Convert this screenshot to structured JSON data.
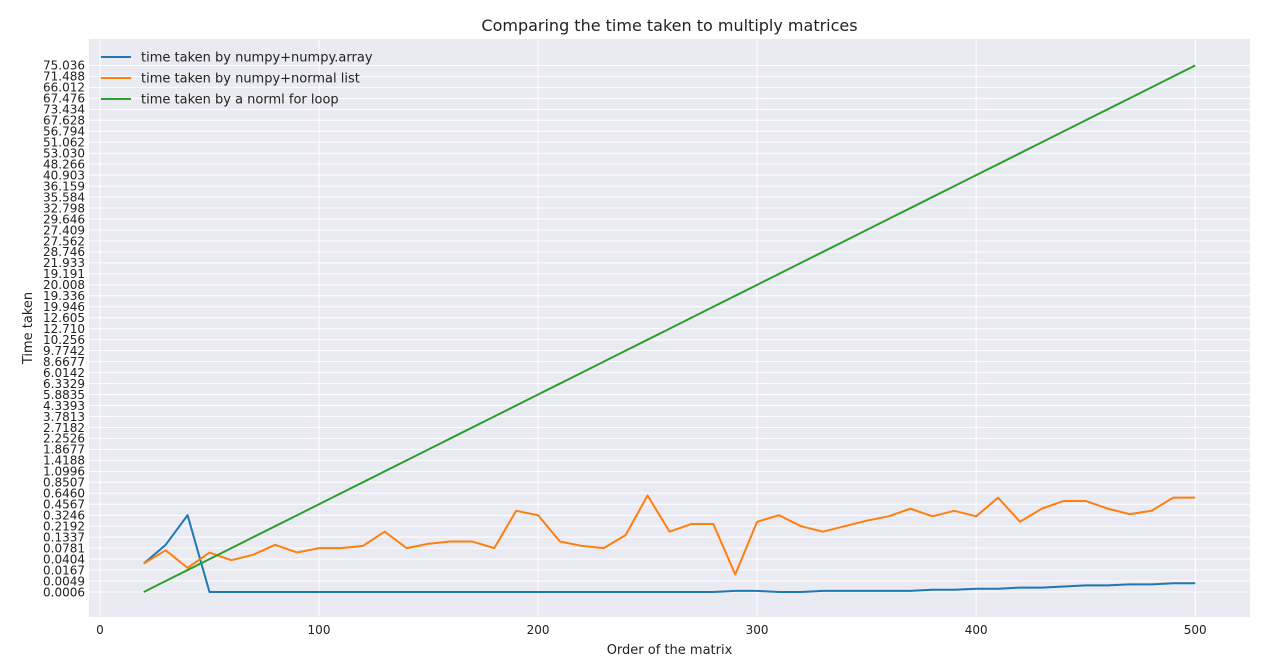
{
  "chart_data": {
    "type": "line",
    "title": "Comparing the time taken to multiply matrices",
    "xlabel": "Order of the matrix",
    "ylabel": "Time taken",
    "xlim": [
      -5,
      525
    ],
    "x_ticks": [
      0,
      100,
      200,
      300,
      400,
      500
    ],
    "y_axis_kind": "categorical",
    "y_categories": [
      "0.0006",
      "0.0049",
      "0.0167",
      "0.0404",
      "0.0781",
      "0.1337",
      "0.2192",
      "0.3246",
      "0.4567",
      "0.6460",
      "0.8507",
      "1.0996",
      "1.4188",
      "1.8677",
      "2.2526",
      "2.7182",
      "3.7813",
      "4.3393",
      "5.8835",
      "6.3329",
      "6.0142",
      "8.6677",
      "9.7742",
      "10.256",
      "12.710",
      "12.605",
      "19.946",
      "19.336",
      "20.008",
      "19.191",
      "21.933",
      "28.746",
      "27.562",
      "27.409",
      "29.646",
      "32.798",
      "35.584",
      "36.159",
      "40.903",
      "48.266",
      "53.030",
      "51.062",
      "56.794",
      "67.628",
      "73.434",
      "67.476",
      "66.012",
      "71.488",
      "75.036"
    ],
    "grid": true,
    "legend_position": "upper-left",
    "x": [
      20,
      30,
      40,
      50,
      60,
      70,
      80,
      90,
      100,
      110,
      120,
      130,
      140,
      150,
      160,
      170,
      180,
      190,
      200,
      210,
      220,
      230,
      240,
      250,
      260,
      270,
      280,
      290,
      300,
      310,
      320,
      330,
      340,
      350,
      360,
      370,
      380,
      390,
      400,
      410,
      420,
      430,
      440,
      450,
      460,
      470,
      480,
      490,
      500
    ],
    "series": [
      {
        "name": "time taken by numpy+numpy.array",
        "color": "#1f77b4",
        "y_category_index": [
          2.6,
          4.3,
          7.0,
          0.0,
          0.0,
          0.0,
          0.0,
          0.0,
          0.0,
          0.0,
          0.0,
          0.0,
          0.0,
          0.0,
          0.0,
          0.0,
          0.0,
          0.0,
          0.0,
          0.0,
          0.0,
          0.0,
          0.0,
          0.0,
          0.0,
          0.0,
          0.0,
          0.1,
          0.1,
          0.0,
          0.0,
          0.1,
          0.1,
          0.1,
          0.1,
          0.1,
          0.2,
          0.2,
          0.3,
          0.3,
          0.4,
          0.4,
          0.5,
          0.6,
          0.6,
          0.7,
          0.7,
          0.8,
          0.8
        ]
      },
      {
        "name": "time taken by numpy+normal list",
        "color": "#ff7f0e",
        "y_category_index": [
          2.6,
          3.8,
          2.2,
          3.6,
          2.9,
          3.4,
          4.3,
          3.6,
          4.0,
          4.0,
          4.2,
          5.5,
          4.0,
          4.4,
          4.6,
          4.6,
          4.0,
          7.4,
          7.0,
          4.6,
          4.2,
          4.0,
          5.2,
          8.8,
          5.5,
          6.2,
          6.2,
          1.6,
          6.4,
          7.0,
          6.0,
          5.5,
          6.0,
          6.5,
          6.9,
          7.6,
          6.9,
          7.4,
          6.9,
          8.6,
          6.4,
          7.6,
          8.3,
          8.3,
          7.6,
          7.1,
          7.4,
          8.6,
          8.6
        ]
      },
      {
        "name": "time taken by a norml for loop",
        "color": "#2ca02c",
        "y_category_index": [
          0,
          1,
          2,
          3,
          4,
          5,
          6,
          7,
          8,
          9,
          10,
          11,
          12,
          13,
          14,
          15,
          16,
          17,
          18,
          19,
          20,
          21,
          22,
          23,
          24,
          25,
          26,
          27,
          28,
          29,
          30,
          31,
          32,
          33,
          34,
          35,
          36,
          37,
          38,
          39,
          40,
          41,
          42,
          43,
          44,
          45,
          46,
          47,
          48
        ]
      }
    ]
  }
}
